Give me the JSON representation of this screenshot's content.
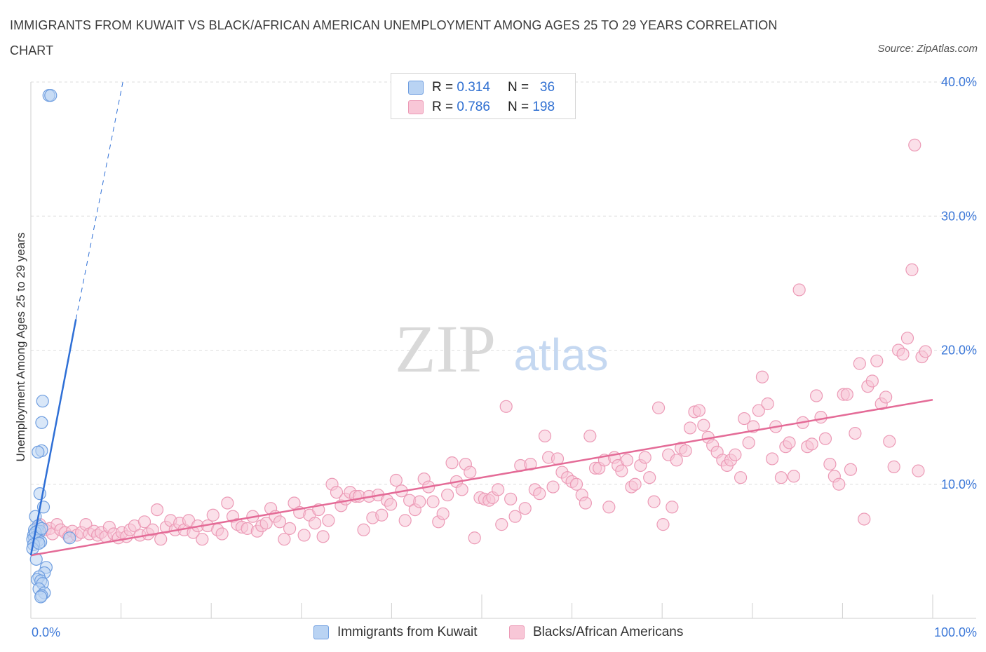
{
  "header": {
    "title": "IMMIGRANTS FROM KUWAIT VS BLACK/AFRICAN AMERICAN UNEMPLOYMENT AMONG AGES 25 TO 29 YEARS CORRELATION CHART",
    "source": "Source: ZipAtlas.com"
  },
  "watermark": {
    "zip": "ZIP",
    "atlas": "atlas"
  },
  "colors": {
    "blue_fill": "#b9d3f3",
    "blue_stroke": "#6f9ee0",
    "blue_line": "#2e6fd6",
    "pink_fill": "#f8c7d7",
    "pink_stroke": "#ec9ab6",
    "pink_line": "#e46b97",
    "tick_color": "#3c78d8",
    "grid": "#dedede"
  },
  "legend_top": {
    "rows": [
      {
        "r_label": "R =",
        "r_value": "0.314",
        "n_label": "N =",
        "n_value": "36"
      },
      {
        "r_label": "R =",
        "r_value": "0.786",
        "n_label": "N =",
        "n_value": "198"
      }
    ]
  },
  "legend_bottom": {
    "series_a": "Immigrants from Kuwait",
    "series_b": "Blacks/African Americans"
  },
  "chart_data": {
    "type": "scatter",
    "title": "IMMIGRANTS FROM KUWAIT VS BLACK/AFRICAN AMERICAN UNEMPLOYMENT AMONG AGES 25 TO 29 YEARS CORRELATION CHART",
    "xlabel": "",
    "ylabel": "Unemployment Among Ages 25 to 29 years",
    "xlim": [
      0,
      100
    ],
    "ylim": [
      0,
      40
    ],
    "x_tick_labels": [
      "0.0%",
      "100.0%"
    ],
    "y_ticks": [
      10,
      20,
      30,
      40
    ],
    "y_tick_labels": [
      "10.0%",
      "20.0%",
      "30.0%",
      "40.0%"
    ],
    "grid": true,
    "legend_position": "top-center",
    "series": [
      {
        "name": "Immigrants from Kuwait",
        "R": 0.314,
        "N": 36,
        "trend": {
          "x0": 0.0,
          "y0": 4.7,
          "x1": 5.0,
          "y1": 22.3,
          "dashed_to_x": 10.2,
          "dashed_to_y": 40.0
        },
        "points": [
          [
            2.0,
            39.0
          ],
          [
            2.2,
            39.0
          ],
          [
            1.3,
            16.2
          ],
          [
            1.2,
            14.6
          ],
          [
            1.2,
            12.5
          ],
          [
            0.8,
            12.4
          ],
          [
            1.0,
            9.3
          ],
          [
            1.4,
            8.3
          ],
          [
            0.5,
            7.6
          ],
          [
            0.8,
            6.9
          ],
          [
            0.4,
            6.6
          ],
          [
            0.7,
            6.5
          ],
          [
            1.0,
            6.5
          ],
          [
            0.3,
            6.2
          ],
          [
            0.6,
            6.1
          ],
          [
            0.4,
            6.0
          ],
          [
            0.2,
            5.9
          ],
          [
            0.8,
            5.8
          ],
          [
            1.1,
            5.7
          ],
          [
            0.3,
            5.5
          ],
          [
            0.2,
            5.2
          ],
          [
            4.3,
            6.0
          ],
          [
            0.6,
            4.4
          ],
          [
            1.7,
            3.8
          ],
          [
            1.5,
            3.4
          ],
          [
            0.9,
            3.1
          ],
          [
            0.7,
            2.9
          ],
          [
            1.1,
            2.8
          ],
          [
            1.3,
            2.6
          ],
          [
            0.9,
            2.2
          ],
          [
            1.5,
            1.9
          ],
          [
            1.2,
            1.7
          ],
          [
            1.1,
            1.6
          ],
          [
            0.5,
            6.4
          ],
          [
            0.9,
            5.6
          ],
          [
            1.2,
            6.7
          ]
        ]
      },
      {
        "name": "Blacks/African Americans",
        "R": 0.786,
        "N": 198,
        "trend": {
          "x0": 0.0,
          "y0": 4.7,
          "x1": 100.0,
          "y1": 16.3
        },
        "points": [
          [
            1.0,
            7.0
          ],
          [
            1.6,
            6.6
          ],
          [
            2.1,
            6.7
          ],
          [
            2.4,
            6.3
          ],
          [
            2.9,
            7.0
          ],
          [
            3.3,
            6.6
          ],
          [
            3.8,
            6.4
          ],
          [
            4.2,
            6.1
          ],
          [
            4.6,
            6.5
          ],
          [
            5.1,
            6.2
          ],
          [
            5.6,
            6.4
          ],
          [
            6.1,
            7.0
          ],
          [
            6.5,
            6.3
          ],
          [
            7.0,
            6.5
          ],
          [
            7.4,
            6.2
          ],
          [
            7.8,
            6.4
          ],
          [
            8.3,
            6.1
          ],
          [
            8.7,
            6.8
          ],
          [
            9.2,
            6.3
          ],
          [
            9.7,
            6.0
          ],
          [
            10.1,
            6.4
          ],
          [
            10.6,
            6.1
          ],
          [
            11.0,
            6.6
          ],
          [
            11.5,
            6.9
          ],
          [
            12.1,
            6.2
          ],
          [
            12.6,
            7.2
          ],
          [
            13.0,
            6.3
          ],
          [
            13.5,
            6.6
          ],
          [
            14.0,
            8.1
          ],
          [
            14.4,
            5.9
          ],
          [
            15.0,
            6.8
          ],
          [
            15.5,
            7.3
          ],
          [
            16.0,
            6.6
          ],
          [
            16.5,
            7.1
          ],
          [
            17.0,
            6.6
          ],
          [
            17.5,
            7.3
          ],
          [
            18.0,
            6.4
          ],
          [
            18.5,
            6.9
          ],
          [
            19.0,
            5.9
          ],
          [
            19.6,
            6.9
          ],
          [
            20.2,
            7.7
          ],
          [
            20.7,
            6.6
          ],
          [
            21.2,
            6.3
          ],
          [
            21.8,
            8.6
          ],
          [
            22.4,
            7.6
          ],
          [
            22.9,
            7.0
          ],
          [
            23.4,
            6.8
          ],
          [
            24.0,
            6.7
          ],
          [
            24.6,
            7.6
          ],
          [
            25.1,
            6.5
          ],
          [
            25.6,
            6.9
          ],
          [
            26.1,
            7.1
          ],
          [
            26.6,
            8.2
          ],
          [
            27.1,
            7.6
          ],
          [
            27.6,
            7.2
          ],
          [
            28.1,
            5.9
          ],
          [
            28.7,
            6.7
          ],
          [
            29.2,
            8.6
          ],
          [
            29.8,
            7.9
          ],
          [
            30.3,
            6.2
          ],
          [
            30.9,
            7.7
          ],
          [
            31.5,
            7.1
          ],
          [
            31.9,
            8.1
          ],
          [
            32.4,
            6.1
          ],
          [
            33.0,
            7.3
          ],
          [
            33.4,
            10.0
          ],
          [
            33.9,
            9.4
          ],
          [
            34.4,
            8.4
          ],
          [
            34.9,
            8.9
          ],
          [
            35.4,
            9.4
          ],
          [
            36.0,
            9.1
          ],
          [
            36.4,
            9.1
          ],
          [
            36.9,
            6.6
          ],
          [
            37.5,
            9.1
          ],
          [
            37.9,
            7.5
          ],
          [
            38.5,
            9.2
          ],
          [
            38.9,
            7.7
          ],
          [
            39.5,
            8.8
          ],
          [
            39.9,
            8.5
          ],
          [
            40.5,
            10.3
          ],
          [
            41.1,
            9.5
          ],
          [
            41.5,
            7.3
          ],
          [
            42.0,
            8.8
          ],
          [
            42.6,
            8.1
          ],
          [
            43.1,
            8.7
          ],
          [
            43.6,
            10.4
          ],
          [
            44.1,
            9.8
          ],
          [
            44.6,
            8.7
          ],
          [
            45.2,
            7.2
          ],
          [
            45.7,
            7.8
          ],
          [
            46.2,
            9.2
          ],
          [
            46.7,
            11.6
          ],
          [
            47.2,
            10.2
          ],
          [
            47.8,
            9.6
          ],
          [
            48.2,
            11.5
          ],
          [
            48.7,
            10.9
          ],
          [
            49.2,
            6.0
          ],
          [
            49.8,
            9.0
          ],
          [
            50.3,
            8.9
          ],
          [
            50.8,
            8.8
          ],
          [
            51.2,
            9.0
          ],
          [
            51.8,
            9.6
          ],
          [
            52.2,
            7.0
          ],
          [
            52.7,
            15.8
          ],
          [
            53.2,
            8.9
          ],
          [
            53.7,
            7.6
          ],
          [
            54.3,
            11.4
          ],
          [
            54.8,
            8.2
          ],
          [
            55.4,
            11.5
          ],
          [
            55.9,
            9.6
          ],
          [
            56.4,
            9.3
          ],
          [
            57.0,
            13.6
          ],
          [
            57.4,
            12.0
          ],
          [
            57.9,
            9.8
          ],
          [
            58.4,
            11.9
          ],
          [
            58.9,
            10.9
          ],
          [
            59.5,
            10.5
          ],
          [
            60.0,
            10.2
          ],
          [
            60.5,
            10.0
          ],
          [
            61.1,
            9.2
          ],
          [
            61.5,
            8.6
          ],
          [
            62.0,
            13.6
          ],
          [
            62.6,
            11.2
          ],
          [
            63.0,
            11.2
          ],
          [
            63.6,
            11.8
          ],
          [
            64.1,
            8.3
          ],
          [
            64.7,
            12.0
          ],
          [
            65.1,
            11.4
          ],
          [
            65.5,
            11.0
          ],
          [
            66.1,
            11.8
          ],
          [
            66.6,
            9.8
          ],
          [
            67.0,
            10.0
          ],
          [
            67.6,
            11.4
          ],
          [
            68.1,
            12.0
          ],
          [
            68.6,
            10.5
          ],
          [
            69.1,
            8.7
          ],
          [
            69.6,
            15.7
          ],
          [
            70.1,
            7.0
          ],
          [
            70.7,
            12.2
          ],
          [
            71.1,
            8.3
          ],
          [
            71.6,
            11.8
          ],
          [
            72.1,
            12.7
          ],
          [
            72.6,
            12.5
          ],
          [
            73.1,
            14.2
          ],
          [
            73.6,
            15.4
          ],
          [
            74.1,
            15.5
          ],
          [
            74.6,
            14.4
          ],
          [
            75.1,
            13.5
          ],
          [
            75.6,
            12.9
          ],
          [
            76.1,
            12.4
          ],
          [
            76.7,
            11.8
          ],
          [
            77.2,
            11.4
          ],
          [
            77.6,
            11.8
          ],
          [
            78.1,
            12.2
          ],
          [
            78.7,
            10.5
          ],
          [
            79.1,
            14.9
          ],
          [
            79.6,
            13.1
          ],
          [
            80.1,
            14.3
          ],
          [
            80.7,
            15.5
          ],
          [
            81.1,
            18.0
          ],
          [
            81.7,
            16.0
          ],
          [
            82.2,
            11.9
          ],
          [
            82.6,
            14.3
          ],
          [
            83.2,
            10.5
          ],
          [
            83.7,
            12.8
          ],
          [
            84.1,
            13.1
          ],
          [
            84.6,
            10.6
          ],
          [
            85.2,
            24.5
          ],
          [
            85.6,
            14.6
          ],
          [
            86.1,
            12.8
          ],
          [
            86.6,
            13.0
          ],
          [
            87.1,
            16.6
          ],
          [
            87.6,
            15.0
          ],
          [
            88.1,
            13.4
          ],
          [
            88.6,
            11.5
          ],
          [
            89.1,
            10.6
          ],
          [
            89.6,
            10.0
          ],
          [
            90.1,
            16.7
          ],
          [
            90.5,
            16.7
          ],
          [
            90.9,
            11.1
          ],
          [
            91.4,
            13.8
          ],
          [
            91.9,
            19.0
          ],
          [
            92.4,
            7.4
          ],
          [
            92.8,
            17.3
          ],
          [
            93.3,
            17.7
          ],
          [
            93.8,
            19.2
          ],
          [
            94.3,
            16.0
          ],
          [
            94.8,
            16.5
          ],
          [
            95.2,
            13.2
          ],
          [
            95.7,
            11.3
          ],
          [
            96.2,
            20.0
          ],
          [
            96.7,
            19.7
          ],
          [
            97.2,
            20.9
          ],
          [
            97.7,
            26.0
          ],
          [
            98.0,
            35.3
          ],
          [
            98.4,
            11.0
          ],
          [
            98.8,
            19.5
          ],
          [
            99.2,
            19.9
          ]
        ]
      }
    ]
  }
}
